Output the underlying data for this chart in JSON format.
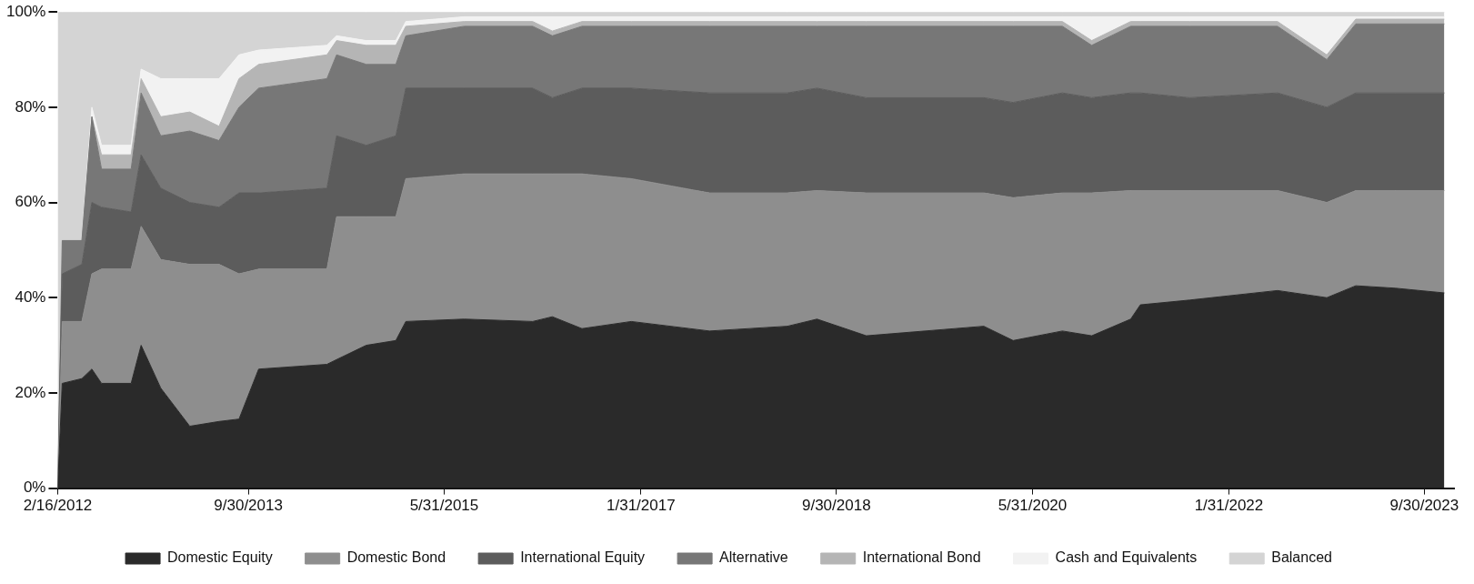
{
  "chart_data": {
    "type": "area",
    "stacked": true,
    "legend": "bottom",
    "grid": false,
    "x": [
      "2012-02-16",
      "2012-03",
      "2012-05",
      "2012-06",
      "2012-07",
      "2012-10",
      "2012-11",
      "2013-01",
      "2013-04",
      "2013-07",
      "2013-09",
      "2013-11",
      "2014-06",
      "2014-07",
      "2014-10",
      "2015-01",
      "2015-02",
      "2015-08",
      "2016-03",
      "2016-05",
      "2016-08",
      "2017-01",
      "2017-09",
      "2018-05",
      "2018-08",
      "2019-01",
      "2020-01",
      "2020-04",
      "2020-09",
      "2020-12",
      "2021-04",
      "2021-05",
      "2021-10",
      "2022-07",
      "2022-12",
      "2023-03",
      "2023-07",
      "2023-12"
    ],
    "xlim": [
      "2012-02-16",
      "2023-12-31"
    ],
    "xticks": [
      {
        "value": "2012-02-16",
        "label": "2/16/2012"
      },
      {
        "value": "2013-09-30",
        "label": "9/30/2013"
      },
      {
        "value": "2015-05-31",
        "label": "5/31/2015"
      },
      {
        "value": "2017-01-31",
        "label": "1/31/2017"
      },
      {
        "value": "2018-09-30",
        "label": "9/30/2018"
      },
      {
        "value": "2020-05-31",
        "label": "5/31/2020"
      },
      {
        "value": "2022-01-31",
        "label": "1/31/2022"
      },
      {
        "value": "2023-09-30",
        "label": "9/30/2023"
      }
    ],
    "ylim": [
      0,
      100
    ],
    "yticks": [
      {
        "value": 0,
        "label": "0%"
      },
      {
        "value": 20,
        "label": "20%"
      },
      {
        "value": 40,
        "label": "40%"
      },
      {
        "value": 60,
        "label": "60%"
      },
      {
        "value": 80,
        "label": "80%"
      },
      {
        "value": 100,
        "label": "100%"
      }
    ],
    "series": [
      {
        "name": "Domestic Equity",
        "color": "#2a2a2a",
        "values": [
          0,
          22,
          23,
          25,
          22,
          22,
          30,
          21,
          13,
          14,
          14.5,
          25,
          26,
          27,
          30,
          31,
          35,
          35.5,
          35,
          36,
          33.5,
          35,
          33,
          34,
          35.5,
          32,
          34,
          31,
          33,
          32,
          35.5,
          38.5,
          39.5,
          41.5,
          40,
          42.5,
          42,
          41
        ]
      },
      {
        "name": "Domestic Bond",
        "color": "#8e8e8e",
        "values": [
          0,
          13,
          12,
          20,
          24,
          24,
          25,
          27,
          34,
          33,
          30.5,
          21,
          20,
          30,
          27,
          26,
          30,
          30.5,
          31,
          30,
          32.5,
          30,
          29,
          28,
          27,
          30,
          28,
          30,
          29,
          30,
          27,
          24,
          23,
          21,
          20,
          20,
          20.5,
          21.5
        ]
      },
      {
        "name": "International Equity",
        "color": "#5c5c5c",
        "values": [
          0,
          10,
          12,
          15,
          13,
          12,
          15,
          15,
          13,
          12,
          17,
          16,
          17,
          17,
          15,
          17,
          19,
          18,
          18,
          16,
          18,
          19,
          21,
          21,
          21.5,
          20,
          20,
          20,
          21,
          20,
          20.5,
          20.5,
          19.5,
          20.5,
          20,
          20.5,
          20.5,
          20.5
        ]
      },
      {
        "name": "Alternative",
        "color": "#777777",
        "values": [
          0,
          7,
          5,
          18,
          8,
          9,
          13,
          11,
          15,
          14,
          18,
          22,
          23,
          17,
          17,
          15,
          11,
          13,
          13,
          13,
          13,
          13,
          14,
          14,
          13,
          15,
          15,
          16,
          14,
          11,
          14,
          14,
          15,
          14,
          10,
          14.5,
          14.5,
          14.5
        ]
      },
      {
        "name": "International Bond",
        "color": "#b5b5b5",
        "values": [
          0,
          0,
          0,
          0,
          3,
          3,
          3,
          4,
          4,
          3,
          6,
          5,
          5,
          3,
          4,
          4,
          2,
          1,
          1,
          1,
          1,
          1,
          1,
          1,
          1,
          1,
          1,
          1,
          1,
          1,
          1,
          1,
          1,
          1,
          1,
          1,
          1,
          1
        ]
      },
      {
        "name": "Cash and Equivalents",
        "color": "#f2f2f2",
        "values": [
          0,
          0,
          0,
          2,
          2,
          2,
          2,
          8,
          7,
          10,
          5,
          3,
          2,
          1,
          1,
          1,
          1,
          1,
          1,
          3,
          1,
          1,
          1,
          1,
          1,
          1,
          1,
          1,
          1,
          5,
          1,
          1,
          1,
          1,
          8,
          0.5,
          0.5,
          0.5
        ]
      },
      {
        "name": "Balanced",
        "color": "#d4d4d4",
        "values": [
          100,
          48,
          48,
          20,
          28,
          28,
          12,
          14,
          14,
          14,
          9,
          8,
          7,
          5,
          6,
          6,
          2,
          1,
          1,
          1,
          1,
          1,
          1,
          1,
          1,
          1,
          1,
          1,
          1,
          1,
          1,
          1,
          1,
          1,
          1,
          1,
          1,
          1
        ]
      }
    ]
  }
}
